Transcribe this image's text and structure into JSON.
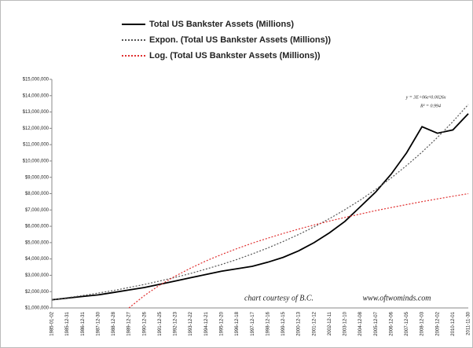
{
  "chart_data": {
    "type": "line",
    "categories": [
      "1985-01-02",
      "1985-12-31",
      "1986-12-31",
      "1987-12-30",
      "1988-12-28",
      "1989-12-27",
      "1990-12-26",
      "1991-12-25",
      "1992-12-23",
      "1993-12-22",
      "1994-12-21",
      "1995-12-20",
      "1996-12-18",
      "1997-12-17",
      "1998-12-16",
      "1999-12-15",
      "2000-12-13",
      "2001-12-12",
      "2002-12-11",
      "2003-12-10",
      "2004-12-08",
      "2005-12-07",
      "2006-12-06",
      "2007-12-05",
      "2008-12-03",
      "2009-12-02",
      "2010-12-01",
      "2011-11-30"
    ],
    "series": [
      {
        "name": "Total US Bankster Assets (Millions)",
        "color": "#000000",
        "style": "solid",
        "values": [
          1500000,
          1600000,
          1700000,
          1800000,
          1950000,
          2100000,
          2250000,
          2450000,
          2650000,
          2850000,
          3050000,
          3250000,
          3400000,
          3550000,
          3800000,
          4100000,
          4500000,
          5000000,
          5600000,
          6300000,
          7200000,
          8100000,
          9200000,
          10500000,
          12100000,
          11700000,
          11900000,
          12900000
        ]
      },
      {
        "name": "Expon. (Total US Bankster Assets (Millions))",
        "color": "#555555",
        "style": "dotted",
        "values": [
          1500000,
          1630000,
          1760000,
          1910000,
          2070000,
          2250000,
          2440000,
          2650000,
          2870000,
          3110000,
          3380000,
          3660000,
          3970000,
          4310000,
          4670000,
          5070000,
          5500000,
          5960000,
          6470000,
          7020000,
          7610000,
          8260000,
          8960000,
          9720000,
          10540000,
          11440000,
          12410000,
          13460000
        ]
      },
      {
        "name": "Log. (Total US Bankster Assets (Millions))",
        "color": "#e03030",
        "style": "dotted",
        "values": [
          null,
          null,
          null,
          null,
          null,
          1000000,
          1760000,
          2400000,
          2950000,
          3440000,
          3880000,
          4270000,
          4630000,
          4970000,
          5270000,
          5560000,
          5830000,
          6080000,
          6320000,
          6540000,
          6750000,
          6960000,
          7150000,
          7330000,
          7510000,
          7680000,
          7840000,
          8000000
        ]
      }
    ],
    "ylim": [
      1000000,
      15000000
    ],
    "yticks": [
      {
        "value": 1000000,
        "label": "$1,000,000"
      },
      {
        "value": 2000000,
        "label": "$2,000,000"
      },
      {
        "value": 3000000,
        "label": "$3,000,000"
      },
      {
        "value": 4000000,
        "label": "$4,000,000"
      },
      {
        "value": 5000000,
        "label": "$5,000,000"
      },
      {
        "value": 6000000,
        "label": "$6,000,000"
      },
      {
        "value": 7000000,
        "label": "$7,000,000"
      },
      {
        "value": 8000000,
        "label": "$8,000,000"
      },
      {
        "value": 9000000,
        "label": "$9,000,000"
      },
      {
        "value": 10000000,
        "label": "$10,000,000"
      },
      {
        "value": 11000000,
        "label": "$11,000,000"
      },
      {
        "value": 12000000,
        "label": "$12,000,000"
      },
      {
        "value": 13000000,
        "label": "$13,000,000"
      },
      {
        "value": 14000000,
        "label": "$14,000,000"
      },
      {
        "value": 15000000,
        "label": "$15,000,000"
      }
    ],
    "grid": false,
    "legend": "top",
    "annotations": [
      "y = 3E+06e^0.0026x",
      "R² = 0.994",
      "chart courtesy of B.C.",
      "www.oftwominds.com"
    ]
  }
}
